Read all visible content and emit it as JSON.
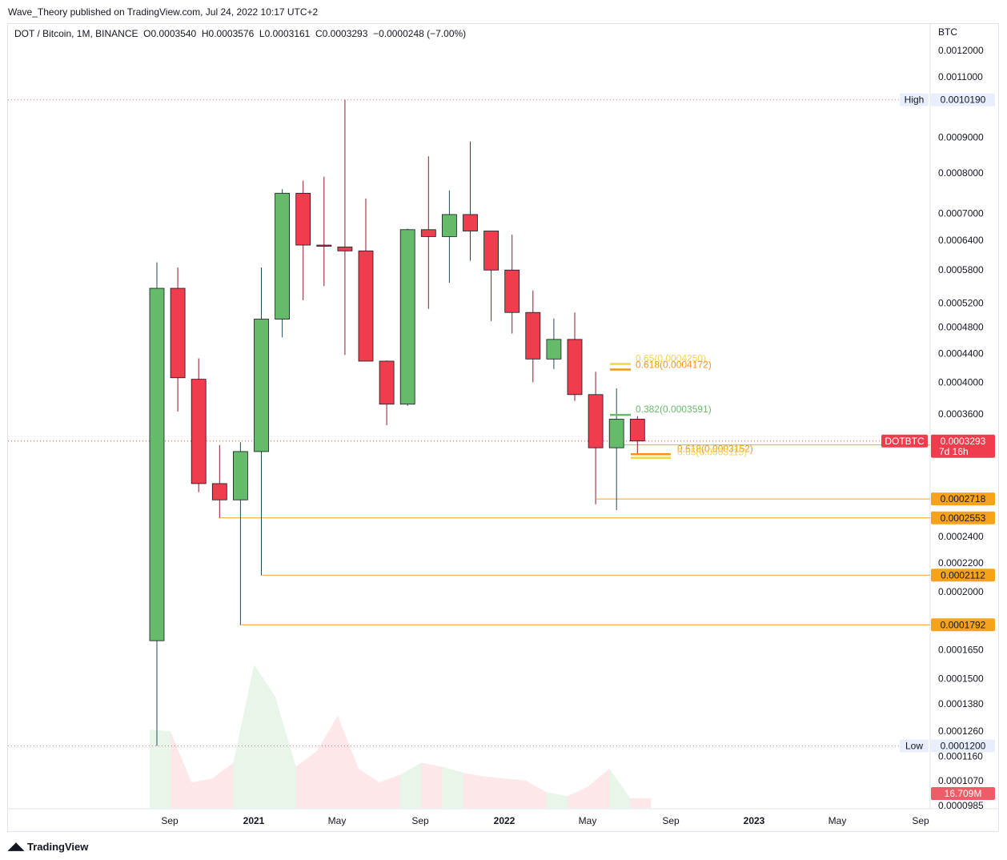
{
  "header": {
    "published": "Wave_Theory published on TradingView.com, Jul 24, 2022 10:17 UTC+2",
    "legend": "DOT / Bitcoin, 1M, BINANCE  O0.0003540  H0.0003576  L0.0003161  C0.0003293  −0.0000248 (−7.00%)"
  },
  "footer": {
    "brand": "TradingView",
    "logo_icon": "tradingview-logo-icon"
  },
  "colors": {
    "up": "#66bb6a",
    "down": "#ef3d4e",
    "level": "#f7a21b",
    "fib_orange": "#f7931a",
    "fib_yellow": "#f5d34a",
    "fib_green": "#66bb6a",
    "axis_text": "#131722"
  },
  "chart_data": {
    "type": "candlestick",
    "symbol": "DOTBTC",
    "currency_label": "BTC",
    "interval": "1M",
    "y_scale": "log",
    "ylim": [
      9.85e-05,
      0.00129
    ],
    "y_ticks": [
      0.0012,
      0.0011,
      0.0009,
      0.0008,
      0.0007,
      0.00064,
      0.00058,
      0.00052,
      0.00048,
      0.00044,
      0.0004,
      0.00036,
      0.00024,
      0.00022,
      0.0002,
      0.000165,
      0.00015,
      0.000138,
      0.000126,
      0.000116,
      0.000107,
      9.85e-05
    ],
    "y_tick_labels": [
      "0.0012000",
      "0.0011000",
      "0.0009000",
      "0.0008000",
      "0.0007000",
      "0.0006400",
      "0.0005800",
      "0.0005200",
      "0.0004800",
      "0.0004400",
      "0.0004000",
      "0.0003600",
      "0.0002400",
      "0.0002200",
      "0.0002000",
      "0.0001650",
      "0.0001500",
      "0.0001380",
      "0.0001260",
      "0.0001160",
      "0.0001070",
      "0.0000985"
    ],
    "x_labels": [
      "Sep",
      "2021",
      "May",
      "Sep",
      "2022",
      "May",
      "Sep",
      "2023",
      "May",
      "Sep"
    ],
    "candles": [
      {
        "o": 0.00017,
        "h": 0.000595,
        "l": 0.00012,
        "c": 0.000546,
        "v": 0.4
      },
      {
        "o": 0.000546,
        "h": 0.000585,
        "l": 0.000363,
        "c": 0.000406,
        "v": 0.39
      },
      {
        "o": 0.000404,
        "h": 0.000433,
        "l": 0.000278,
        "c": 0.000286,
        "v": 0.13
      },
      {
        "o": 0.000286,
        "h": 0.000325,
        "l": 0.000255,
        "c": 0.000271,
        "v": 0.15
      },
      {
        "o": 0.000271,
        "h": 0.000328,
        "l": 0.000179,
        "c": 0.000318,
        "v": 0.23
      },
      {
        "o": 0.000318,
        "h": 0.000585,
        "l": 0.000211,
        "c": 0.000493,
        "v": 0.73
      },
      {
        "o": 0.000493,
        "h": 0.000758,
        "l": 0.000464,
        "c": 0.000748,
        "v": 0.57
      },
      {
        "o": 0.000748,
        "h": 0.00078,
        "l": 0.000525,
        "c": 0.00063,
        "v": 0.21
      },
      {
        "o": 0.00063,
        "h": 0.00079,
        "l": 0.00055,
        "c": 0.000628,
        "v": 0.29
      },
      {
        "o": 0.000626,
        "h": 0.001019,
        "l": 0.000438,
        "c": 0.000618,
        "v": 0.47
      },
      {
        "o": 0.000618,
        "h": 0.000735,
        "l": 0.000432,
        "c": 0.000429,
        "v": 0.2
      },
      {
        "o": 0.000429,
        "h": 0.00043,
        "l": 0.000347,
        "c": 0.000372,
        "v": 0.13
      },
      {
        "o": 0.000372,
        "h": 0.000665,
        "l": 0.00037,
        "c": 0.000663,
        "v": 0.17
      },
      {
        "o": 0.000663,
        "h": 0.000845,
        "l": 0.00051,
        "c": 0.000648,
        "v": 0.23
      },
      {
        "o": 0.000648,
        "h": 0.000755,
        "l": 0.000556,
        "c": 0.000697,
        "v": 0.21
      },
      {
        "o": 0.000697,
        "h": 0.000888,
        "l": 0.000598,
        "c": 0.00066,
        "v": 0.18
      },
      {
        "o": 0.00066,
        "h": 0.00066,
        "l": 0.00049,
        "c": 0.00058,
        "v": 0.16
      },
      {
        "o": 0.00058,
        "h": 0.000652,
        "l": 0.00047,
        "c": 0.000504,
        "v": 0.15
      },
      {
        "o": 0.000504,
        "h": 0.000542,
        "l": 0.0004,
        "c": 0.000432,
        "v": 0.14
      },
      {
        "o": 0.000432,
        "h": 0.000494,
        "l": 0.000418,
        "c": 0.000461,
        "v": 0.08
      },
      {
        "o": 0.000461,
        "h": 0.000504,
        "l": 0.000376,
        "c": 0.000384,
        "v": 0.06
      },
      {
        "o": 0.000384,
        "h": 0.000414,
        "l": 0.000267,
        "c": 0.000322,
        "v": 0.11
      },
      {
        "o": 0.000322,
        "h": 0.000392,
        "l": 0.000262,
        "c": 0.000354,
        "v": 0.2
      },
      {
        "o": 0.000354,
        "h": 0.0003576,
        "l": 0.0003161,
        "c": 0.0003293,
        "v": 0.05
      }
    ],
    "high_marker": {
      "label": "High",
      "value": 0.001019,
      "text": "0.0010190"
    },
    "low_marker": {
      "label": "Low",
      "value": 0.00012,
      "text": "0.0001200"
    },
    "current": {
      "symbol": "DOTBTC",
      "value": 0.0003293,
      "text": "0.0003293",
      "countdown": "7d 16h"
    },
    "volume_label": "16.709M",
    "support_levels": [
      {
        "value": 0.0003251,
        "text": "0.0003251"
      },
      {
        "value": 0.0002718,
        "text": "0.0002718"
      },
      {
        "value": 0.0002553,
        "text": "0.0002553"
      },
      {
        "value": 0.0002112,
        "text": "0.0002112"
      },
      {
        "value": 0.0001792,
        "text": "0.0001792"
      }
    ],
    "fib_levels": [
      {
        "label": "0.65(0.0004250)",
        "value": 0.000425,
        "color": "yellow"
      },
      {
        "label": "0.618(0.0004172)",
        "value": 0.0004172,
        "color": "orange"
      },
      {
        "label": "0.382(0.0003591)",
        "value": 0.0003591,
        "color": "green"
      },
      {
        "label": "0.618(0.0003152)",
        "value": 0.0003152,
        "color": "orange"
      },
      {
        "label": "0.65(0.0003115)",
        "value": 0.0003115,
        "color": "yellow"
      }
    ]
  }
}
